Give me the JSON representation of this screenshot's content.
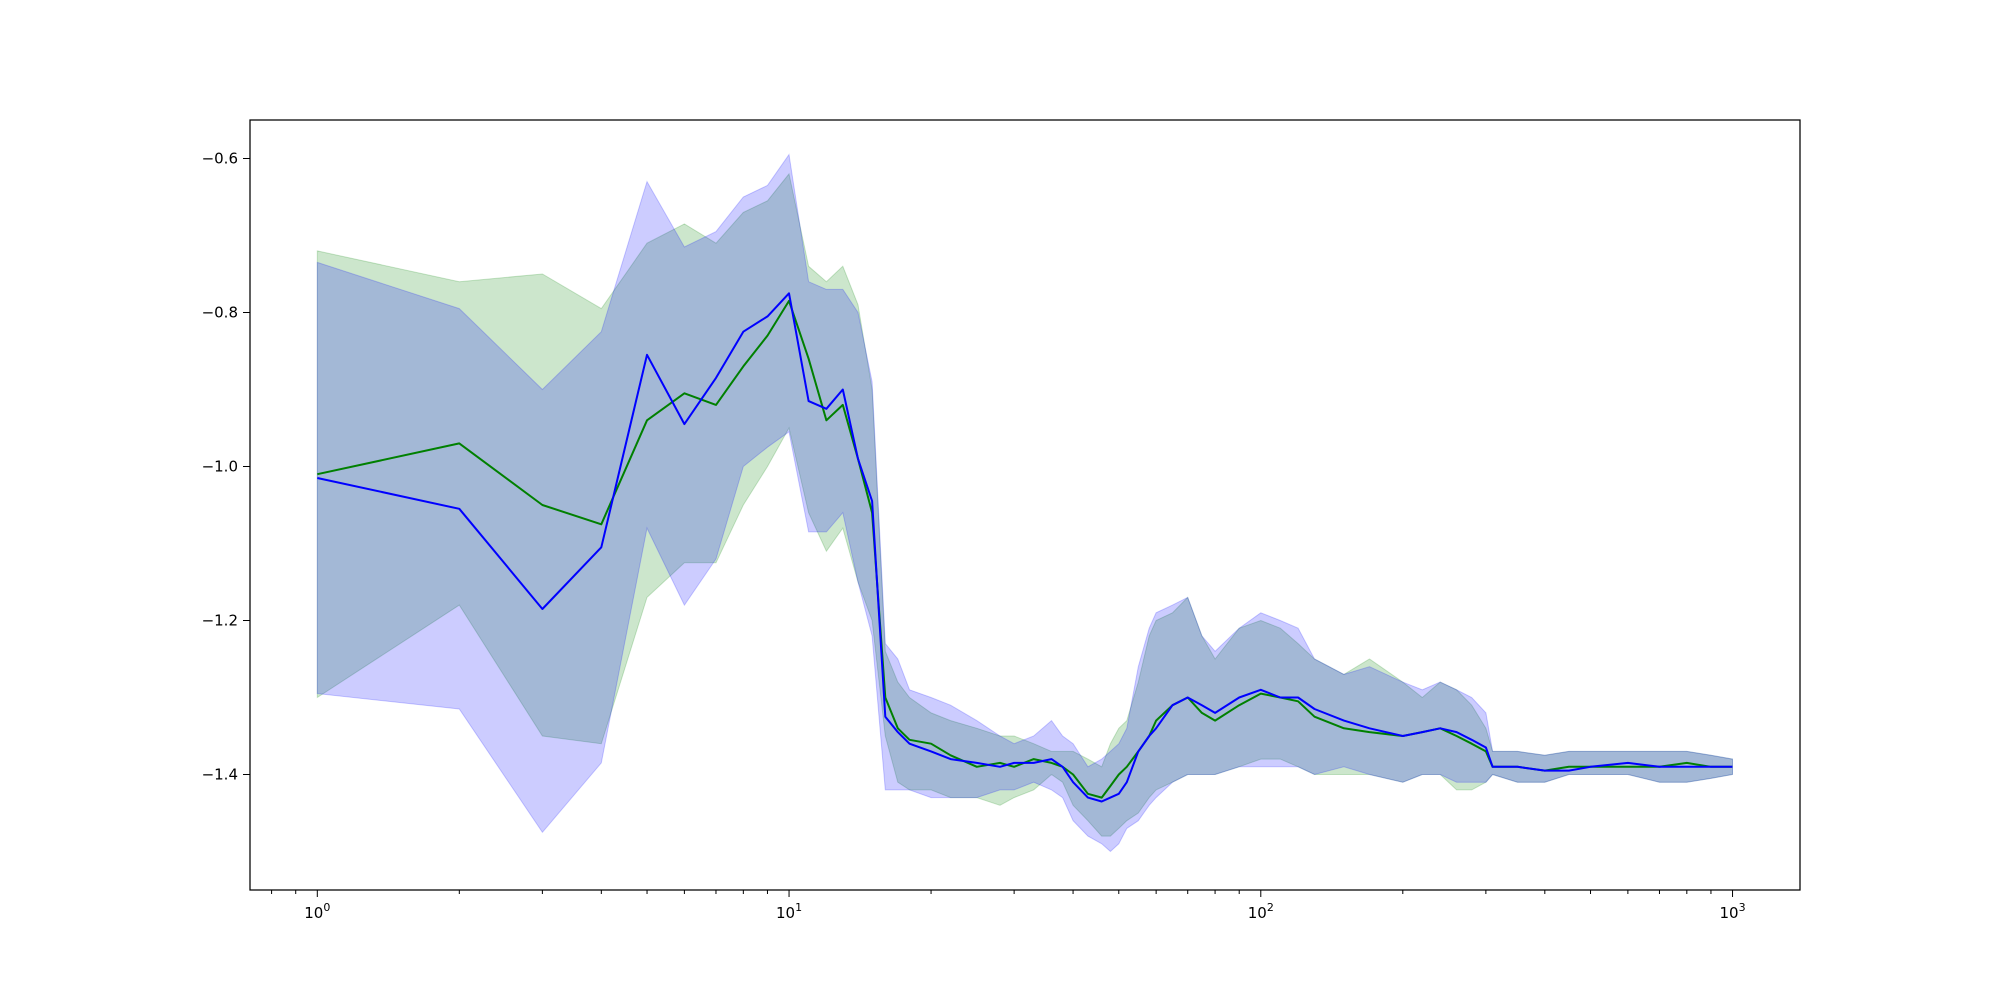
{
  "chart_data": {
    "type": "line",
    "title": "",
    "xlabel": "",
    "ylabel": "",
    "xscale": "log",
    "xlim": [
      0.72,
      1390
    ],
    "ylim": [
      -1.55,
      -0.55
    ],
    "grid": false,
    "x_ticks": [
      {
        "value": 1,
        "base": "10",
        "exp": "0"
      },
      {
        "value": 10,
        "base": "10",
        "exp": "1"
      },
      {
        "value": 100,
        "base": "10",
        "exp": "2"
      },
      {
        "value": 1000,
        "base": "10",
        "exp": "3"
      }
    ],
    "y_ticks": [
      {
        "value": -0.6,
        "label": "−0.6"
      },
      {
        "value": -0.8,
        "label": "−0.8"
      },
      {
        "value": -1.0,
        "label": "−1.0"
      },
      {
        "value": -1.2,
        "label": "−1.2"
      },
      {
        "value": -1.4,
        "label": "−1.4"
      }
    ],
    "series": [
      {
        "color": "#008000",
        "band_color": "#008000",
        "band_opacity": 0.2,
        "x": [
          1,
          2,
          3,
          4,
          5,
          6,
          7,
          8,
          9,
          10,
          11,
          12,
          13,
          14,
          15,
          16,
          17,
          18,
          20,
          22,
          25,
          28,
          30,
          33,
          36,
          38,
          40,
          43,
          46,
          48,
          50,
          52,
          55,
          58,
          60,
          65,
          70,
          75,
          80,
          90,
          100,
          110,
          120,
          130,
          150,
          170,
          200,
          220,
          240,
          260,
          280,
          300,
          310,
          350,
          400,
          450,
          500,
          600,
          700,
          800,
          900,
          1000
        ],
        "y": [
          -1.01,
          -0.97,
          -1.05,
          -1.075,
          -0.94,
          -0.905,
          -0.92,
          -0.87,
          -0.83,
          -0.785,
          -0.86,
          -0.94,
          -0.92,
          -0.99,
          -1.06,
          -1.3,
          -1.34,
          -1.355,
          -1.36,
          -1.375,
          -1.39,
          -1.385,
          -1.39,
          -1.38,
          -1.385,
          -1.39,
          -1.4,
          -1.425,
          -1.43,
          -1.415,
          -1.4,
          -1.39,
          -1.37,
          -1.35,
          -1.33,
          -1.31,
          -1.3,
          -1.32,
          -1.33,
          -1.31,
          -1.295,
          -1.3,
          -1.305,
          -1.325,
          -1.34,
          -1.345,
          -1.35,
          -1.345,
          -1.34,
          -1.35,
          -1.36,
          -1.37,
          -1.39,
          -1.39,
          -1.395,
          -1.39,
          -1.39,
          -1.39,
          -1.39,
          -1.385,
          -1.39,
          -1.39
        ],
        "upper": [
          -0.72,
          -0.76,
          -0.75,
          -0.795,
          -0.71,
          -0.685,
          -0.71,
          -0.67,
          -0.655,
          -0.62,
          -0.74,
          -0.76,
          -0.74,
          -0.79,
          -0.9,
          -1.24,
          -1.28,
          -1.3,
          -1.32,
          -1.33,
          -1.34,
          -1.35,
          -1.35,
          -1.36,
          -1.37,
          -1.37,
          -1.37,
          -1.38,
          -1.39,
          -1.36,
          -1.34,
          -1.33,
          -1.28,
          -1.22,
          -1.2,
          -1.19,
          -1.17,
          -1.22,
          -1.25,
          -1.21,
          -1.2,
          -1.21,
          -1.23,
          -1.25,
          -1.27,
          -1.25,
          -1.28,
          -1.3,
          -1.28,
          -1.29,
          -1.31,
          -1.34,
          -1.37,
          -1.37,
          -1.375,
          -1.37,
          -1.37,
          -1.37,
          -1.37,
          -1.37,
          -1.375,
          -1.38
        ],
        "lower": [
          -1.3,
          -1.18,
          -1.35,
          -1.36,
          -1.17,
          -1.125,
          -1.125,
          -1.05,
          -1.0,
          -0.95,
          -1.06,
          -1.11,
          -1.08,
          -1.15,
          -1.2,
          -1.35,
          -1.41,
          -1.42,
          -1.42,
          -1.43,
          -1.43,
          -1.44,
          -1.43,
          -1.42,
          -1.4,
          -1.41,
          -1.44,
          -1.46,
          -1.48,
          -1.48,
          -1.47,
          -1.46,
          -1.45,
          -1.43,
          -1.42,
          -1.41,
          -1.4,
          -1.4,
          -1.4,
          -1.39,
          -1.38,
          -1.38,
          -1.39,
          -1.4,
          -1.4,
          -1.4,
          -1.41,
          -1.4,
          -1.4,
          -1.42,
          -1.42,
          -1.41,
          -1.4,
          -1.41,
          -1.41,
          -1.4,
          -1.4,
          -1.4,
          -1.41,
          -1.41,
          -1.405,
          -1.4
        ]
      },
      {
        "color": "#0000ff",
        "band_color": "#0000ff",
        "band_opacity": 0.2,
        "x": [
          1,
          2,
          3,
          4,
          5,
          6,
          7,
          8,
          9,
          10,
          11,
          12,
          13,
          14,
          15,
          16,
          17,
          18,
          20,
          22,
          25,
          28,
          30,
          33,
          36,
          38,
          40,
          43,
          46,
          48,
          50,
          52,
          55,
          58,
          60,
          65,
          70,
          75,
          80,
          90,
          100,
          110,
          120,
          130,
          150,
          170,
          200,
          220,
          240,
          260,
          280,
          300,
          310,
          350,
          400,
          450,
          500,
          600,
          700,
          800,
          900,
          1000
        ],
        "y": [
          -1.015,
          -1.055,
          -1.185,
          -1.105,
          -0.855,
          -0.945,
          -0.885,
          -0.825,
          -0.805,
          -0.775,
          -0.915,
          -0.925,
          -0.9,
          -0.99,
          -1.045,
          -1.325,
          -1.345,
          -1.36,
          -1.37,
          -1.38,
          -1.385,
          -1.39,
          -1.385,
          -1.385,
          -1.38,
          -1.39,
          -1.41,
          -1.43,
          -1.435,
          -1.43,
          -1.425,
          -1.41,
          -1.37,
          -1.35,
          -1.34,
          -1.31,
          -1.3,
          -1.31,
          -1.32,
          -1.3,
          -1.29,
          -1.3,
          -1.3,
          -1.315,
          -1.33,
          -1.34,
          -1.35,
          -1.345,
          -1.34,
          -1.345,
          -1.355,
          -1.365,
          -1.39,
          -1.39,
          -1.395,
          -1.395,
          -1.39,
          -1.385,
          -1.39,
          -1.39,
          -1.39,
          -1.39
        ],
        "upper": [
          -0.735,
          -0.795,
          -0.9,
          -0.825,
          -0.63,
          -0.715,
          -0.695,
          -0.65,
          -0.635,
          -0.595,
          -0.76,
          -0.77,
          -0.77,
          -0.8,
          -0.89,
          -1.23,
          -1.25,
          -1.29,
          -1.3,
          -1.31,
          -1.33,
          -1.35,
          -1.36,
          -1.35,
          -1.33,
          -1.35,
          -1.36,
          -1.39,
          -1.38,
          -1.37,
          -1.36,
          -1.34,
          -1.26,
          -1.21,
          -1.19,
          -1.18,
          -1.17,
          -1.22,
          -1.24,
          -1.21,
          -1.19,
          -1.2,
          -1.21,
          -1.25,
          -1.27,
          -1.26,
          -1.28,
          -1.29,
          -1.28,
          -1.29,
          -1.3,
          -1.32,
          -1.37,
          -1.37,
          -1.375,
          -1.37,
          -1.37,
          -1.37,
          -1.37,
          -1.37,
          -1.375,
          -1.38
        ],
        "lower": [
          -1.295,
          -1.315,
          -1.475,
          -1.385,
          -1.08,
          -1.18,
          -1.12,
          -1.0,
          -0.975,
          -0.955,
          -1.085,
          -1.085,
          -1.06,
          -1.15,
          -1.22,
          -1.42,
          -1.42,
          -1.42,
          -1.43,
          -1.43,
          -1.43,
          -1.42,
          -1.42,
          -1.41,
          -1.42,
          -1.43,
          -1.46,
          -1.48,
          -1.49,
          -1.5,
          -1.49,
          -1.47,
          -1.46,
          -1.44,
          -1.43,
          -1.41,
          -1.4,
          -1.4,
          -1.4,
          -1.39,
          -1.39,
          -1.39,
          -1.39,
          -1.4,
          -1.39,
          -1.4,
          -1.41,
          -1.4,
          -1.4,
          -1.41,
          -1.41,
          -1.41,
          -1.4,
          -1.41,
          -1.41,
          -1.4,
          -1.4,
          -1.4,
          -1.41,
          -1.41,
          -1.405,
          -1.4
        ]
      }
    ]
  }
}
